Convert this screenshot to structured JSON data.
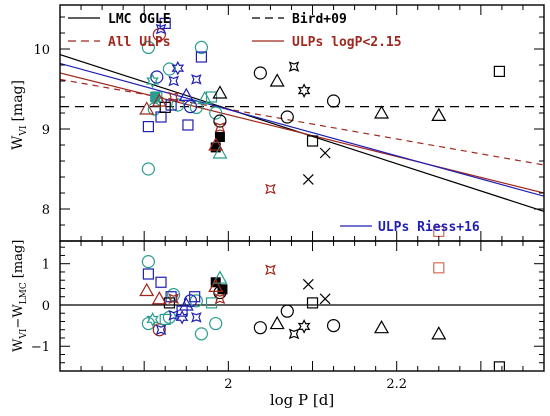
{
  "chart_data": [
    {
      "type": "scatter",
      "panel": "top",
      "xlabel": "",
      "ylabel": "W_VI [mag]",
      "ylabel_main": "W",
      "ylabel_sub": "VI",
      "ylabel_unit": "[mag]",
      "xlim": [
        1.8,
        2.375
      ],
      "ylim": [
        10.55,
        7.6
      ],
      "inverted_y": true,
      "xticks": [],
      "yticks": [
        {
          "value": 8,
          "label": "8"
        },
        {
          "value": 9,
          "label": "9"
        },
        {
          "value": 10,
          "label": "10"
        }
      ],
      "legend_position": "top-left",
      "legend": [
        {
          "label": "LMC OGLE",
          "color": "#000000",
          "style": "solid"
        },
        {
          "label": "Bird+09",
          "color": "#000000",
          "style": "dashed"
        },
        {
          "label": "All ULPs",
          "color": "#a0281e",
          "style": "dashed"
        },
        {
          "label": "ULPs logP<2.15",
          "color": "#a0281e",
          "style": "solid"
        },
        {
          "label": "ULPs Riess+16",
          "color": "#1f1fb4",
          "style": "solid"
        }
      ],
      "lines": [
        {
          "name": "LMC OGLE",
          "color": "#000000",
          "dash": "",
          "x": [
            1.8,
            2.375
          ],
          "y": [
            9.93,
            7.97
          ]
        },
        {
          "name": "Bird+09",
          "color": "#000000",
          "dash": "9,6",
          "x": [
            1.8,
            2.375
          ],
          "y": [
            9.28,
            9.28
          ]
        },
        {
          "name": "All ULPs",
          "color": "#a0281e",
          "dash": "6,5",
          "x": [
            1.8,
            2.375
          ],
          "y": [
            9.62,
            8.55
          ]
        },
        {
          "name": "ULPs logP<2.15",
          "color": "#a0281e",
          "dash": "",
          "x": [
            1.8,
            2.375
          ],
          "y": [
            9.7,
            8.2
          ]
        },
        {
          "name": "ULPs Riess+16",
          "color": "#1f1fb4",
          "dash": "",
          "x": [
            1.8,
            2.375
          ],
          "y": [
            9.82,
            8.16
          ]
        }
      ],
      "points": [
        {
          "x": 1.905,
          "y": 8.5,
          "m": "circle",
          "c": "#2a9d8f"
        },
        {
          "x": 1.912,
          "y": 9.25,
          "m": "circle",
          "c": "#2a9d8f"
        },
        {
          "x": 1.94,
          "y": 9.3,
          "m": "circle",
          "c": "#2a9d8f"
        },
        {
          "x": 1.962,
          "y": 9.27,
          "m": "circle",
          "c": "#2a9d8f"
        },
        {
          "x": 1.985,
          "y": 9.2,
          "m": "circle",
          "c": "#2a9d8f"
        },
        {
          "x": 1.905,
          "y": 10.02,
          "m": "circle",
          "c": "#2a9d8f"
        },
        {
          "x": 1.93,
          "y": 9.75,
          "m": "circle",
          "c": "#2a9d8f"
        },
        {
          "x": 1.968,
          "y": 10.02,
          "m": "circle",
          "c": "#2a9d8f"
        },
        {
          "x": 1.918,
          "y": 10.18,
          "m": "circle",
          "c": "#a0281e"
        },
        {
          "x": 1.955,
          "y": 9.28,
          "m": "circle",
          "c": "#1f1fb4"
        },
        {
          "x": 1.915,
          "y": 9.65,
          "m": "circle",
          "c": "#1f1fb4"
        },
        {
          "x": 1.99,
          "y": 9.1,
          "m": "circle",
          "c": "#000000"
        },
        {
          "x": 2.038,
          "y": 9.7,
          "m": "circle",
          "c": "#000000"
        },
        {
          "x": 2.07,
          "y": 9.15,
          "m": "circle",
          "c": "#000000"
        },
        {
          "x": 2.125,
          "y": 9.35,
          "m": "circle",
          "c": "#000000"
        },
        {
          "x": 1.905,
          "y": 9.03,
          "m": "square",
          "c": "#1f1fb4"
        },
        {
          "x": 1.92,
          "y": 9.15,
          "m": "square",
          "c": "#1f1fb4"
        },
        {
          "x": 1.932,
          "y": 9.3,
          "m": "square",
          "c": "#1f1fb4"
        },
        {
          "x": 1.925,
          "y": 10.32,
          "m": "square",
          "c": "#1f1fb4"
        },
        {
          "x": 1.952,
          "y": 9.05,
          "m": "square",
          "c": "#1f1fb4"
        },
        {
          "x": 1.968,
          "y": 9.9,
          "m": "square",
          "c": "#1f1fb4"
        },
        {
          "x": 1.915,
          "y": 9.4,
          "m": "square",
          "c": "#2a9d8f"
        },
        {
          "x": 1.98,
          "y": 9.4,
          "m": "square",
          "c": "#2a9d8f"
        },
        {
          "x": 1.925,
          "y": 9.27,
          "m": "square",
          "c": "#000000"
        },
        {
          "x": 2.1,
          "y": 8.85,
          "m": "square",
          "c": "#000000"
        },
        {
          "x": 2.322,
          "y": 9.72,
          "m": "square",
          "c": "#000000"
        },
        {
          "x": 2.25,
          "y": 7.72,
          "m": "square",
          "c": "#d96b5a"
        },
        {
          "x": 1.985,
          "y": 8.77,
          "m": "filled-square",
          "c": "#000000"
        },
        {
          "x": 1.99,
          "y": 8.9,
          "m": "filled-square",
          "c": "#000000"
        },
        {
          "x": 1.913,
          "y": 9.4,
          "m": "filled-square",
          "c": "#2a9d8f"
        },
        {
          "x": 1.903,
          "y": 9.25,
          "m": "triangle",
          "c": "#a0281e"
        },
        {
          "x": 1.918,
          "y": 9.35,
          "m": "triangle",
          "c": "#a0281e"
        },
        {
          "x": 1.95,
          "y": 9.42,
          "m": "triangle",
          "c": "#1f1fb4"
        },
        {
          "x": 1.972,
          "y": 9.38,
          "m": "triangle",
          "c": "#2a9d8f"
        },
        {
          "x": 1.99,
          "y": 8.7,
          "m": "triangle",
          "c": "#2a9d8f"
        },
        {
          "x": 1.985,
          "y": 8.8,
          "m": "triangle",
          "c": "#a0281e"
        },
        {
          "x": 1.99,
          "y": 9.45,
          "m": "triangle",
          "c": "#000000"
        },
        {
          "x": 2.058,
          "y": 9.6,
          "m": "triangle",
          "c": "#000000"
        },
        {
          "x": 2.182,
          "y": 9.2,
          "m": "triangle",
          "c": "#000000"
        },
        {
          "x": 2.25,
          "y": 9.17,
          "m": "triangle",
          "c": "#000000"
        },
        {
          "x": 1.935,
          "y": 9.6,
          "m": "star4",
          "c": "#1f1fb4"
        },
        {
          "x": 1.962,
          "y": 9.62,
          "m": "star4",
          "c": "#1f1fb4"
        },
        {
          "x": 1.92,
          "y": 10.25,
          "m": "star4",
          "c": "#1f1fb4"
        },
        {
          "x": 1.935,
          "y": 9.4,
          "m": "star4",
          "c": "#a0281e"
        },
        {
          "x": 1.99,
          "y": 9.02,
          "m": "star4",
          "c": "#a0281e"
        },
        {
          "x": 2.05,
          "y": 8.25,
          "m": "star4",
          "c": "#a0281e"
        },
        {
          "x": 2.078,
          "y": 9.78,
          "m": "star4",
          "c": "#000000"
        },
        {
          "x": 1.94,
          "y": 9.76,
          "m": "star6",
          "c": "#1f1fb4"
        },
        {
          "x": 2.09,
          "y": 9.48,
          "m": "star6",
          "c": "#000000"
        },
        {
          "x": 1.91,
          "y": 9.6,
          "m": "star6",
          "c": "#2a9d8f"
        },
        {
          "x": 2.095,
          "y": 8.37,
          "m": "cross",
          "c": "#000000"
        },
        {
          "x": 2.115,
          "y": 8.7,
          "m": "cross",
          "c": "#000000"
        }
      ]
    },
    {
      "type": "scatter",
      "panel": "bottom",
      "xlabel": "log P [d]",
      "ylabel": "W_VI − W_LMC [mag]",
      "xlim": [
        1.8,
        2.375
      ],
      "ylim": [
        1.55,
        -1.6
      ],
      "xticks": [
        {
          "value": 2.0,
          "label": "2"
        },
        {
          "value": 2.2,
          "label": "2.2"
        }
      ],
      "yticks": [
        {
          "value": 1,
          "label": "1"
        },
        {
          "value": 0,
          "label": "0"
        },
        {
          "value": -1,
          "label": "−1"
        }
      ],
      "zero_line": 0,
      "points": [
        {
          "x": 1.905,
          "y": 1.05,
          "m": "circle",
          "c": "#2a9d8f"
        },
        {
          "x": 1.935,
          "y": 0.25,
          "m": "circle",
          "c": "#2a9d8f"
        },
        {
          "x": 1.962,
          "y": 0.1,
          "m": "circle",
          "c": "#2a9d8f"
        },
        {
          "x": 1.905,
          "y": -0.45,
          "m": "circle",
          "c": "#2a9d8f"
        },
        {
          "x": 1.93,
          "y": -0.3,
          "m": "circle",
          "c": "#2a9d8f"
        },
        {
          "x": 1.968,
          "y": -0.7,
          "m": "circle",
          "c": "#2a9d8f"
        },
        {
          "x": 1.985,
          "y": -0.45,
          "m": "circle",
          "c": "#2a9d8f"
        },
        {
          "x": 1.918,
          "y": -0.6,
          "m": "circle",
          "c": "#a0281e"
        },
        {
          "x": 1.955,
          "y": 0.1,
          "m": "circle",
          "c": "#1f1fb4"
        },
        {
          "x": 1.99,
          "y": 0.3,
          "m": "circle",
          "c": "#000000"
        },
        {
          "x": 2.038,
          "y": -0.55,
          "m": "circle",
          "c": "#000000"
        },
        {
          "x": 2.07,
          "y": -0.15,
          "m": "circle",
          "c": "#000000"
        },
        {
          "x": 2.125,
          "y": -0.5,
          "m": "circle",
          "c": "#000000"
        },
        {
          "x": 1.905,
          "y": 0.75,
          "m": "square",
          "c": "#1f1fb4"
        },
        {
          "x": 1.92,
          "y": 0.55,
          "m": "square",
          "c": "#1f1fb4"
        },
        {
          "x": 1.932,
          "y": 0.2,
          "m": "square",
          "c": "#1f1fb4"
        },
        {
          "x": 1.945,
          "y": -0.15,
          "m": "square",
          "c": "#1f1fb4"
        },
        {
          "x": 1.96,
          "y": 0.2,
          "m": "square",
          "c": "#1f1fb4"
        },
        {
          "x": 1.925,
          "y": -0.35,
          "m": "square",
          "c": "#2a9d8f"
        },
        {
          "x": 1.98,
          "y": 0.05,
          "m": "square",
          "c": "#2a9d8f"
        },
        {
          "x": 1.93,
          "y": 0.05,
          "m": "square",
          "c": "#000000"
        },
        {
          "x": 2.1,
          "y": 0.05,
          "m": "square",
          "c": "#000000"
        },
        {
          "x": 2.322,
          "y": -1.5,
          "m": "square",
          "c": "#000000"
        },
        {
          "x": 2.25,
          "y": 0.9,
          "m": "square",
          "c": "#d96b5a"
        },
        {
          "x": 1.985,
          "y": 0.55,
          "m": "filled-square",
          "c": "#000000"
        },
        {
          "x": 1.993,
          "y": 0.38,
          "m": "filled-square",
          "c": "#000000"
        },
        {
          "x": 1.903,
          "y": 0.35,
          "m": "triangle",
          "c": "#a0281e"
        },
        {
          "x": 1.918,
          "y": 0.15,
          "m": "triangle",
          "c": "#a0281e"
        },
        {
          "x": 1.95,
          "y": 0.0,
          "m": "triangle",
          "c": "#1f1fb4"
        },
        {
          "x": 1.99,
          "y": 0.65,
          "m": "triangle",
          "c": "#2a9d8f"
        },
        {
          "x": 1.985,
          "y": 0.45,
          "m": "triangle",
          "c": "#a0281e"
        },
        {
          "x": 2.058,
          "y": -0.45,
          "m": "triangle",
          "c": "#000000"
        },
        {
          "x": 2.182,
          "y": -0.55,
          "m": "triangle",
          "c": "#000000"
        },
        {
          "x": 2.25,
          "y": -0.7,
          "m": "triangle",
          "c": "#000000"
        },
        {
          "x": 1.935,
          "y": -0.25,
          "m": "star4",
          "c": "#1f1fb4"
        },
        {
          "x": 1.962,
          "y": -0.3,
          "m": "star4",
          "c": "#1f1fb4"
        },
        {
          "x": 1.92,
          "y": -0.6,
          "m": "star4",
          "c": "#1f1fb4"
        },
        {
          "x": 1.935,
          "y": 0.15,
          "m": "star4",
          "c": "#a0281e"
        },
        {
          "x": 1.99,
          "y": 0.15,
          "m": "star4",
          "c": "#a0281e"
        },
        {
          "x": 2.05,
          "y": 0.85,
          "m": "star4",
          "c": "#a0281e"
        },
        {
          "x": 2.078,
          "y": -0.7,
          "m": "star4",
          "c": "#000000"
        },
        {
          "x": 1.945,
          "y": -0.3,
          "m": "star6",
          "c": "#1f1fb4"
        },
        {
          "x": 2.09,
          "y": -0.52,
          "m": "star6",
          "c": "#000000"
        },
        {
          "x": 1.91,
          "y": -0.35,
          "m": "star6",
          "c": "#2a9d8f"
        },
        {
          "x": 2.095,
          "y": 0.5,
          "m": "cross",
          "c": "#000000"
        },
        {
          "x": 2.115,
          "y": 0.15,
          "m": "cross",
          "c": "#000000"
        }
      ]
    }
  ]
}
